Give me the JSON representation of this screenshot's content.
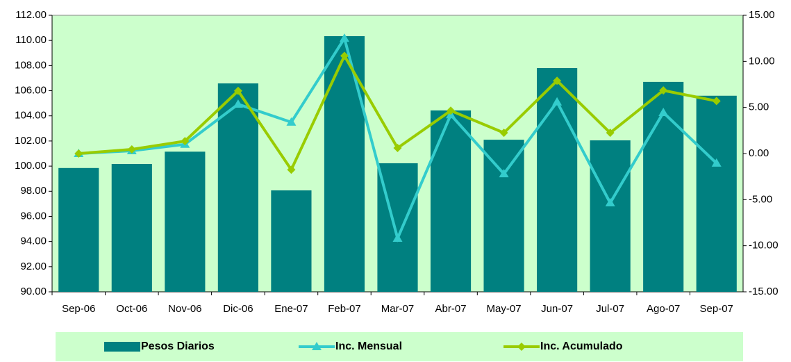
{
  "chart_data": {
    "type": "bar_line",
    "categories": [
      "Sep-06",
      "Oct-06",
      "Nov-06",
      "Dic-06",
      "Ene-07",
      "Feb-07",
      "Mar-07",
      "Abr-07",
      "May-07",
      "Jun-07",
      "Jul-07",
      "Ago-07",
      "Sep-07"
    ],
    "series": [
      {
        "name": "Pesos Diarios",
        "color": "#008080",
        "type": "bar",
        "values": [
          99.85,
          100.17,
          101.15,
          106.58,
          98.07,
          110.34,
          100.23,
          104.43,
          102.1,
          107.8,
          102.05,
          106.7,
          105.6
        ]
      },
      {
        "name": "Inc. Mensual",
        "color": "#33CCCC",
        "type": "line",
        "marker": "triangle",
        "axis": "y2",
        "values": [
          0,
          0.3,
          1.0,
          5.35,
          3.4,
          12.5,
          -9.2,
          4.2,
          -2.2,
          5.6,
          -5.35,
          4.45,
          -1.05
        ]
      },
      {
        "name": "Inc. Acumulado",
        "color": "#99CC00",
        "type": "line",
        "marker": "diamond",
        "axis": "y2",
        "values": [
          0,
          0.45,
          1.35,
          6.8,
          -1.75,
          10.6,
          0.6,
          4.65,
          2.25,
          7.9,
          2.25,
          6.85,
          5.7
        ]
      }
    ],
    "ylim": [
      90,
      112
    ],
    "yticks": [
      {
        "value": 90,
        "label": "90.00"
      },
      {
        "value": 92,
        "label": "92.00"
      },
      {
        "value": 94,
        "label": "94.00"
      },
      {
        "value": 96,
        "label": "96.00"
      },
      {
        "value": 98,
        "label": "98.00"
      },
      {
        "value": 100,
        "label": "100.00"
      },
      {
        "value": 102,
        "label": "102.00"
      },
      {
        "value": 104,
        "label": "104.00"
      },
      {
        "value": 106,
        "label": "106.00"
      },
      {
        "value": 108,
        "label": "108.00"
      },
      {
        "value": 110,
        "label": "110.00"
      },
      {
        "value": 112,
        "label": "112.00"
      }
    ],
    "y2lim": [
      -15,
      15
    ],
    "y2ticks": [
      {
        "value": -15,
        "label": "-15.00"
      },
      {
        "value": -10,
        "label": "-10.00"
      },
      {
        "value": -5,
        "label": "-5.00"
      },
      {
        "value": 0,
        "label": "0.00"
      },
      {
        "value": 5,
        "label": "5.00"
      },
      {
        "value": 10,
        "label": "10.00"
      },
      {
        "value": 15,
        "label": "15.00"
      }
    ],
    "plot_background": "#CCFFCC",
    "legend": "bottom"
  }
}
